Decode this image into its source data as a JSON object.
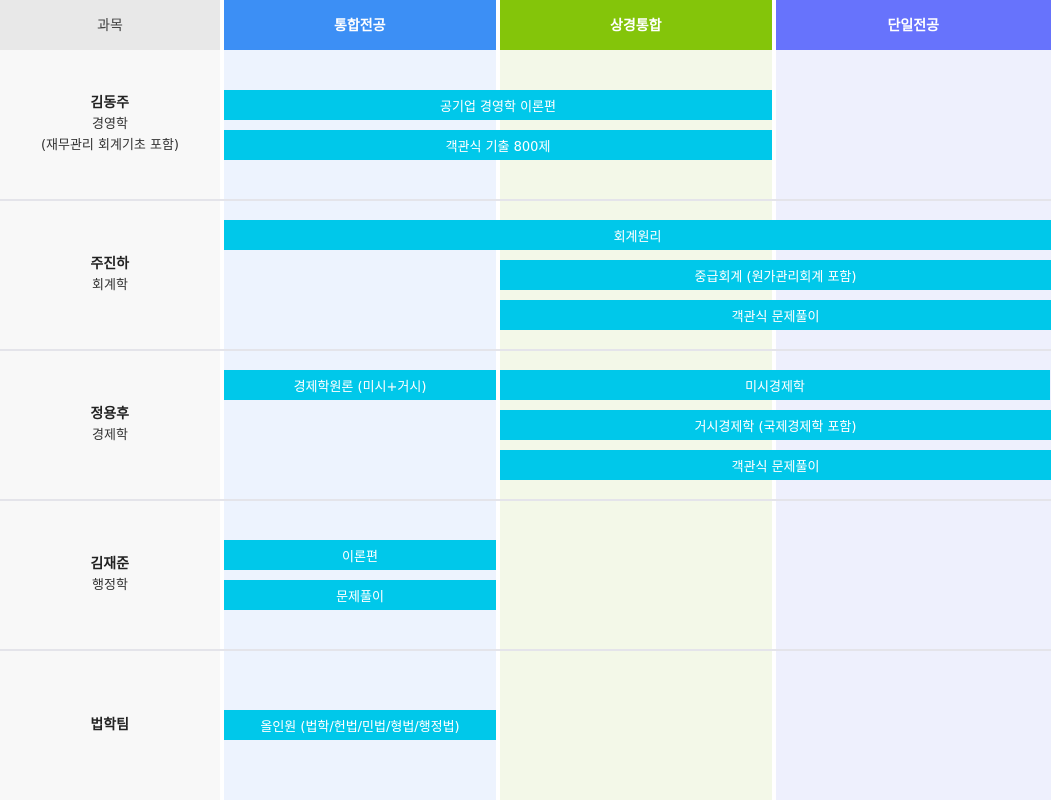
{
  "header": {
    "subject": "과목",
    "columns": [
      {
        "label": "통합전공",
        "color": "#3c8ff5"
      },
      {
        "label": "상경통합",
        "color": "#84c50a"
      },
      {
        "label": "단일전공",
        "color": "#6773fc"
      }
    ]
  },
  "column_bg": [
    "#edf3fe",
    "#f3f8e8",
    "#eef0fd"
  ],
  "bar_color": "#00c8ea",
  "rows": [
    {
      "name": "김동주",
      "sub1": "경영학",
      "sub2": "(재무관리 회계기초 포함)",
      "courses": [
        "공기업 경영학 이론편",
        "객관식 기출 800제"
      ]
    },
    {
      "name": "주진하",
      "sub1": "회계학",
      "courses": [
        "회계원리",
        "중급회계 (원가관리회계 포함)",
        "객관식 문제풀이"
      ]
    },
    {
      "name": "정용후",
      "sub1": "경제학",
      "courses": [
        "경제학원론 (미시+거시)",
        "미시경제학",
        "거시경제학 (국제경제학 포함)",
        "객관식 문제풀이"
      ]
    },
    {
      "name": "김재준",
      "sub1": "행정학",
      "courses": [
        "이론편",
        "문제풀이"
      ]
    },
    {
      "name": "법학팀",
      "courses": [
        "올인원 (법학/헌법/민법/형법/행정법)"
      ]
    }
  ]
}
